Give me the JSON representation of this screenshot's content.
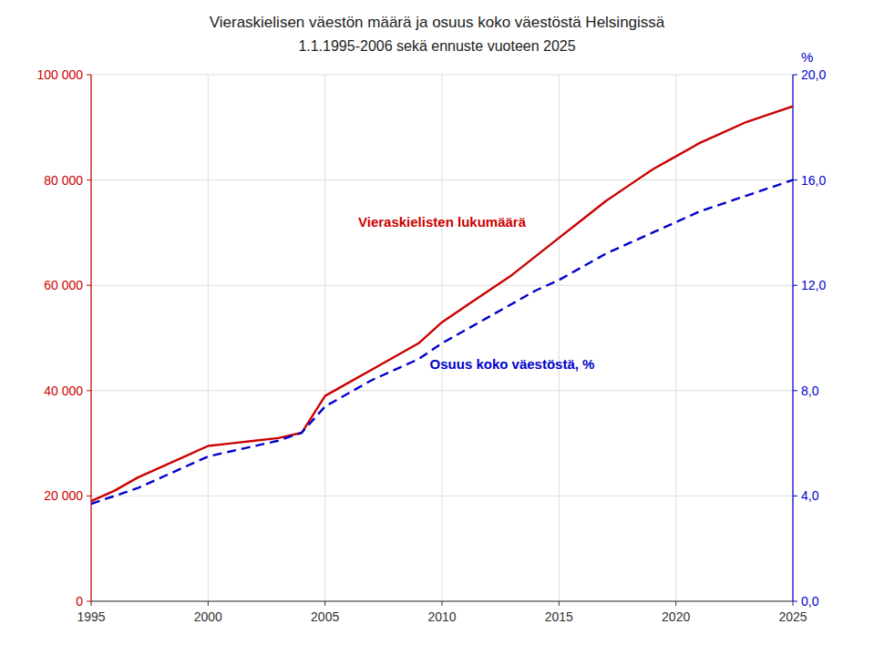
{
  "chart_data": {
    "type": "line",
    "title": "Vieraskielisen väestön määrä ja osuus koko väestöstä Helsingissä",
    "subtitle": "1.1.1995-2006 sekä ennuste vuoteen 2025",
    "x": [
      1995,
      1996,
      1997,
      1998,
      1999,
      2000,
      2001,
      2002,
      2003,
      2004,
      2005,
      2006,
      2007,
      2008,
      2009,
      2010,
      2011,
      2012,
      2013,
      2014,
      2015,
      2016,
      2017,
      2018,
      2019,
      2020,
      2021,
      2022,
      2023,
      2024,
      2025
    ],
    "series": [
      {
        "name": "Vieraskielisten lukumäärä",
        "color": "#cc0000",
        "line_style": "solid",
        "values": [
          19000,
          21000,
          23500,
          25500,
          27500,
          29500,
          30000,
          30500,
          31000,
          32000,
          39000,
          41500,
          44000,
          46500,
          49000,
          53000,
          56000,
          59000,
          62000,
          65500,
          69000,
          72500,
          76000,
          79000,
          82000,
          84500,
          87000,
          89000,
          91000,
          92500,
          94000
        ]
      },
      {
        "name": "Osuus koko väestöstä, %",
        "color": "#0000cc",
        "line_style": "dashed",
        "axis": "y2",
        "values": [
          3.7,
          4.0,
          4.3,
          4.7,
          5.1,
          5.5,
          5.7,
          5.9,
          6.1,
          6.4,
          7.4,
          7.9,
          8.4,
          8.8,
          9.2,
          9.8,
          10.3,
          10.8,
          11.3,
          11.8,
          12.2,
          12.7,
          13.2,
          13.6,
          14.0,
          14.4,
          14.8,
          15.1,
          15.4,
          15.7,
          16.0
        ]
      }
    ],
    "xlim": [
      1995,
      2025
    ],
    "xticks": [
      1995,
      2000,
      2005,
      2010,
      2015,
      2020,
      2025
    ],
    "ylim": [
      0,
      100000
    ],
    "yticks": [
      0,
      {
        "value": 20000,
        "label": "20 000"
      },
      {
        "value": 40000,
        "label": "40 000"
      },
      {
        "value": 60000,
        "label": "60 000"
      },
      {
        "value": 80000,
        "label": "80 000"
      },
      {
        "value": 100000,
        "label": "100 000"
      }
    ],
    "y2lim": [
      0,
      20.0
    ],
    "y2ticks": [
      {
        "value": 0.0,
        "label": "0,0"
      },
      {
        "value": 4.0,
        "label": "4,0"
      },
      {
        "value": 8.0,
        "label": "8,0"
      },
      {
        "value": 12.0,
        "label": "12,0"
      },
      {
        "value": 16.0,
        "label": "16,0"
      },
      {
        "value": 20.0,
        "label": "20,0"
      }
    ],
    "y2label": "%",
    "grid": true
  }
}
